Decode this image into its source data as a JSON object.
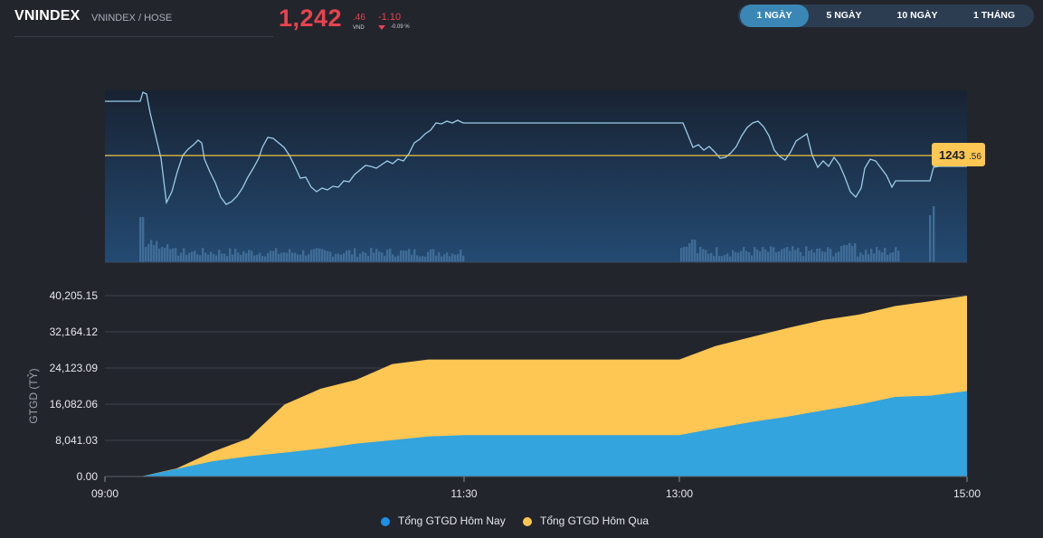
{
  "header": {
    "title": "VNINDEX",
    "subtitle": "VNINDEX / HOSE",
    "price_int": "1,242",
    "price_dec": ".46",
    "price_unit": "VND",
    "change": "-1.10",
    "change_pct": "-0.09 %"
  },
  "tabs": [
    {
      "label": "1 NGÀY",
      "active": true
    },
    {
      "label": "5 NGÀY",
      "active": false
    },
    {
      "label": "10 NGÀY",
      "active": false
    },
    {
      "label": "1 THÁNG",
      "active": false
    }
  ],
  "price_chart": {
    "reference_label_int": "1243",
    "reference_label_dec": ".56",
    "colors": {
      "line": "#9ccbe8",
      "reference": "#f5c542",
      "fill_top": "#182333",
      "fill_bottom": "#234a72",
      "volume": "#3c6a93"
    }
  },
  "chart_data": {
    "type": "area",
    "ylabel": "GTGD (TỶ)",
    "x_ticks": [
      "09:00",
      "11:30",
      "13:00",
      "15:00"
    ],
    "y_ticks": [
      "0.00",
      "8,041.03",
      "16,082.06",
      "24,123.09",
      "32,164.12",
      "40,205.15"
    ],
    "ylim": [
      0,
      40205.15
    ],
    "x": [
      "09:00",
      "09:15",
      "09:30",
      "09:45",
      "10:00",
      "10:15",
      "10:30",
      "10:45",
      "11:00",
      "11:15",
      "11:30",
      "13:00",
      "13:15",
      "13:30",
      "13:45",
      "14:00",
      "14:15",
      "14:30",
      "14:45",
      "15:00"
    ],
    "series": [
      {
        "name": "Tổng GTGD Hôm Nay",
        "color": "#33a4de",
        "values": [
          0,
          0,
          1700,
          3400,
          4500,
          5300,
          6200,
          7300,
          8100,
          8900,
          9200,
          9200,
          10700,
          12100,
          13300,
          14700,
          16000,
          17700,
          18000,
          19000
        ]
      },
      {
        "name": "Tổng GTGD Hôm Qua",
        "color": "#fec653",
        "values": [
          0,
          0,
          1800,
          5500,
          8500,
          16000,
          19500,
          21500,
          25000,
          26000,
          26000,
          26000,
          29000,
          31000,
          33000,
          34800,
          36000,
          37900,
          39000,
          40205
        ]
      }
    ]
  },
  "legend": {
    "today": "Tổng GTGD Hôm Nay",
    "yesterday": "Tổng GTGD Hôm Qua"
  }
}
